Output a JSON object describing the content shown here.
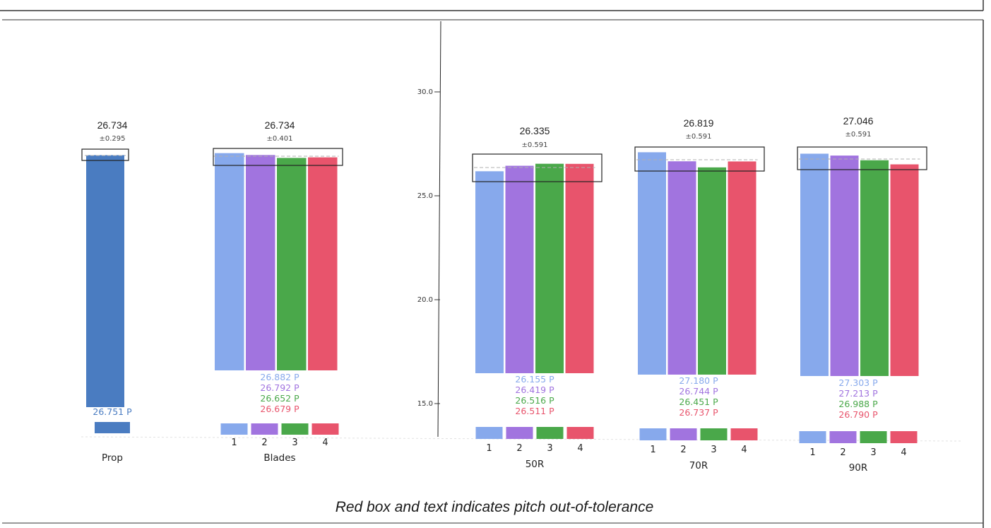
{
  "caption": "Red box and text indicates pitch out-of-tolerance",
  "colors": {
    "prop": "#4a7cc1",
    "blade1": "#87a9ec",
    "blade2": "#a174df",
    "blade3": "#4aa84a",
    "blade4": "#e8546c",
    "frame": "#333333"
  },
  "chart_data": {
    "type": "bar",
    "yaxis": {
      "ticks": [
        "30.0",
        "25.0",
        "20.0",
        "15.0"
      ]
    },
    "groups": [
      {
        "id": "prop",
        "label": "Prop",
        "mean": "26.734",
        "tol": "±0.295",
        "numbers": [],
        "values": [
          26.751
        ],
        "value_labels": [
          "26.751 P"
        ],
        "label_colors": [
          "prop"
        ],
        "colors": [
          "prop"
        ]
      },
      {
        "id": "blades",
        "label": "Blades",
        "mean": "26.734",
        "tol": "±0.401",
        "numbers": [
          "1",
          "2",
          "3",
          "4"
        ],
        "values": [
          26.882,
          26.792,
          26.652,
          26.679
        ],
        "value_labels": [
          "26.882 P",
          "26.792 P",
          "26.652 P",
          "26.679 P"
        ],
        "label_colors": [
          "blade1",
          "blade2",
          "blade3",
          "blade4"
        ],
        "colors": [
          "blade1",
          "blade2",
          "blade3",
          "blade4"
        ]
      },
      {
        "id": "50r",
        "label": "50R",
        "mean": "26.335",
        "tol": "±0.591",
        "numbers": [
          "1",
          "2",
          "3",
          "4"
        ],
        "values": [
          26.155,
          26.419,
          26.516,
          26.511
        ],
        "value_labels": [
          "26.155 P",
          "26.419 P",
          "26.516 P",
          "26.511 P"
        ],
        "label_colors": [
          "blade1",
          "blade2",
          "blade3",
          "blade4"
        ],
        "colors": [
          "blade1",
          "blade2",
          "blade3",
          "blade4"
        ]
      },
      {
        "id": "70r",
        "label": "70R",
        "mean": "26.819",
        "tol": "±0.591",
        "numbers": [
          "1",
          "2",
          "3",
          "4"
        ],
        "values": [
          27.18,
          26.744,
          26.451,
          26.737
        ],
        "value_labels": [
          "27.180 P",
          "26.744 P",
          "26.451 P",
          "26.737 P"
        ],
        "label_colors": [
          "blade1",
          "blade2",
          "blade3",
          "blade4"
        ],
        "colors": [
          "blade1",
          "blade2",
          "blade3",
          "blade4"
        ]
      },
      {
        "id": "90r",
        "label": "90R",
        "mean": "27.046",
        "tol": "±0.591",
        "numbers": [
          "1",
          "2",
          "3",
          "4"
        ],
        "values": [
          27.303,
          27.213,
          26.988,
          26.79
        ],
        "value_labels": [
          "27.303 P",
          "27.213 P",
          "26.988 P",
          "26.790 P"
        ],
        "label_colors": [
          "blade1",
          "blade2",
          "blade3",
          "blade4"
        ],
        "colors": [
          "blade1",
          "blade2",
          "blade3",
          "blade4"
        ]
      }
    ]
  }
}
